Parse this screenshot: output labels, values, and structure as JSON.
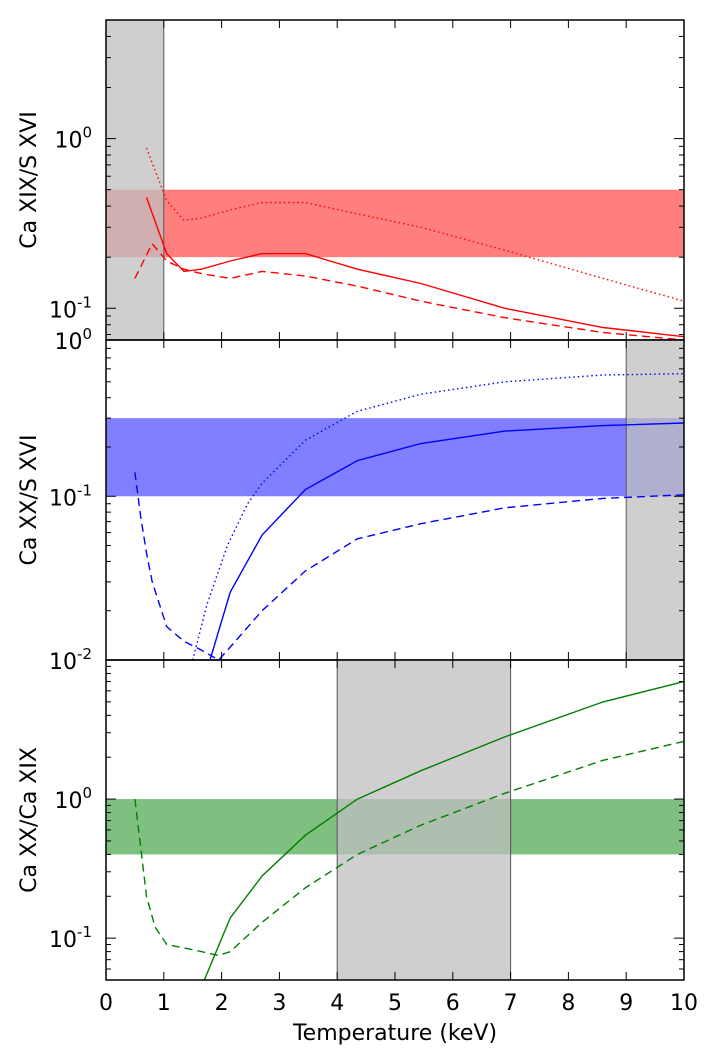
{
  "chart_data": [
    {
      "type": "line",
      "panel": "top",
      "ylabel": "Ca XIX/S XVI",
      "yscale": "log",
      "ylim": [
        0.065,
        5.0
      ],
      "xlim": [
        0,
        10
      ],
      "y_tick_labels": [
        {
          "value": 1.0,
          "base": "10",
          "exp": "0"
        },
        {
          "value": 0.1,
          "base": "10",
          "exp": "-1"
        }
      ],
      "bottom_tick_label": "10",
      "bottom_tick_exp": "0",
      "color": "#ff0000",
      "band": {
        "y_min": 0.2,
        "y_max": 0.5,
        "color": "#ff0000",
        "opacity": 0.5
      },
      "shaded_x": {
        "x_min": 0,
        "x_max": 1.0
      },
      "series": [
        {
          "style": "solid",
          "x": [
            0.7,
            1.05,
            1.35,
            1.65,
            2.15,
            2.7,
            3.45,
            4.35,
            5.45,
            6.9,
            8.6,
            10.0
          ],
          "y": [
            0.45,
            0.21,
            0.165,
            0.17,
            0.19,
            0.21,
            0.21,
            0.17,
            0.14,
            0.1,
            0.077,
            0.068
          ]
        },
        {
          "style": "dashed",
          "x": [
            0.5,
            0.8,
            1.05,
            1.35,
            1.65,
            2.15,
            2.7,
            3.45,
            4.35,
            5.45,
            6.9,
            8.6,
            10.0
          ],
          "y": [
            0.15,
            0.24,
            0.19,
            0.17,
            0.16,
            0.15,
            0.165,
            0.155,
            0.135,
            0.11,
            0.088,
            0.072,
            0.065
          ]
        },
        {
          "style": "dotted",
          "x": [
            0.7,
            1.05,
            1.35,
            1.65,
            2.15,
            2.7,
            3.45,
            4.35,
            5.45,
            6.9,
            8.6,
            10.0
          ],
          "y": [
            0.88,
            0.43,
            0.33,
            0.34,
            0.38,
            0.42,
            0.42,
            0.36,
            0.3,
            0.22,
            0.15,
            0.11
          ]
        }
      ]
    },
    {
      "type": "line",
      "panel": "middle",
      "ylabel": "Ca XX/S XVI",
      "yscale": "log",
      "ylim": [
        0.01,
        0.9
      ],
      "xlim": [
        0,
        10
      ],
      "y_tick_labels": [
        {
          "value": 0.1,
          "base": "10",
          "exp": "-1"
        }
      ],
      "bottom_tick_label": "10",
      "bottom_tick_exp": "-2",
      "color": "#0000ff",
      "band": {
        "y_min": 0.1,
        "y_max": 0.3,
        "color": "#0000ff",
        "opacity": 0.5
      },
      "shaded_x": {
        "x_min": 9.0,
        "x_max": 10.0
      },
      "series": [
        {
          "style": "solid",
          "x": [
            1.8,
            2.15,
            2.7,
            3.45,
            4.35,
            5.45,
            6.9,
            8.6,
            10.0
          ],
          "y": [
            0.01,
            0.026,
            0.058,
            0.11,
            0.165,
            0.21,
            0.25,
            0.27,
            0.28
          ]
        },
        {
          "style": "dashed",
          "x": [
            0.5,
            0.6,
            0.7,
            0.8,
            1.05,
            1.35,
            1.65,
            1.95,
            2.15,
            2.7,
            3.45,
            4.35,
            5.45,
            6.9,
            8.6,
            10.0
          ],
          "y": [
            0.14,
            0.075,
            0.045,
            0.03,
            0.016,
            0.013,
            0.0115,
            0.01,
            0.012,
            0.02,
            0.035,
            0.055,
            0.068,
            0.085,
            0.097,
            0.102
          ]
        },
        {
          "style": "dotted",
          "x": [
            1.5,
            1.75,
            2.1,
            2.45,
            2.7,
            3.45,
            4.35,
            5.45,
            6.9,
            8.6,
            10.0
          ],
          "y": [
            0.01,
            0.022,
            0.05,
            0.09,
            0.12,
            0.22,
            0.33,
            0.42,
            0.5,
            0.55,
            0.56
          ]
        }
      ]
    },
    {
      "type": "line",
      "panel": "bottom",
      "ylabel": "Ca XX/Ca XIX",
      "yscale": "log",
      "ylim": [
        0.05,
        10.0
      ],
      "xlim": [
        0,
        10
      ],
      "xlabel": "Temperature (keV)",
      "x_ticks": [
        "0",
        "1",
        "2",
        "3",
        "4",
        "5",
        "6",
        "7",
        "8",
        "9",
        "10"
      ],
      "y_tick_labels": [
        {
          "value": 1.0,
          "base": "10",
          "exp": "0"
        },
        {
          "value": 0.1,
          "base": "10",
          "exp": "-1"
        }
      ],
      "top_tick_label": "10",
      "top_tick_exp": "-2",
      "color": "#007f00",
      "band": {
        "y_min": 0.4,
        "y_max": 1.0,
        "color": "#008000",
        "opacity": 0.5
      },
      "shaded_x": {
        "x_min": 4.0,
        "x_max": 7.0
      },
      "series": [
        {
          "style": "solid",
          "x": [
            1.7,
            2.15,
            2.7,
            3.45,
            4.35,
            5.45,
            6.9,
            8.6,
            10.0
          ],
          "y": [
            0.05,
            0.14,
            0.28,
            0.55,
            1.0,
            1.6,
            2.8,
            5.0,
            7.0
          ]
        },
        {
          "style": "dashed",
          "x": [
            0.5,
            0.6,
            0.7,
            0.85,
            1.05,
            1.35,
            1.65,
            1.95,
            2.15,
            2.7,
            3.45,
            4.35,
            5.45,
            6.9,
            8.6,
            10.0
          ],
          "y": [
            1.0,
            0.45,
            0.2,
            0.12,
            0.09,
            0.085,
            0.08,
            0.075,
            0.08,
            0.13,
            0.23,
            0.4,
            0.65,
            1.1,
            1.9,
            2.6
          ]
        }
      ]
    }
  ]
}
